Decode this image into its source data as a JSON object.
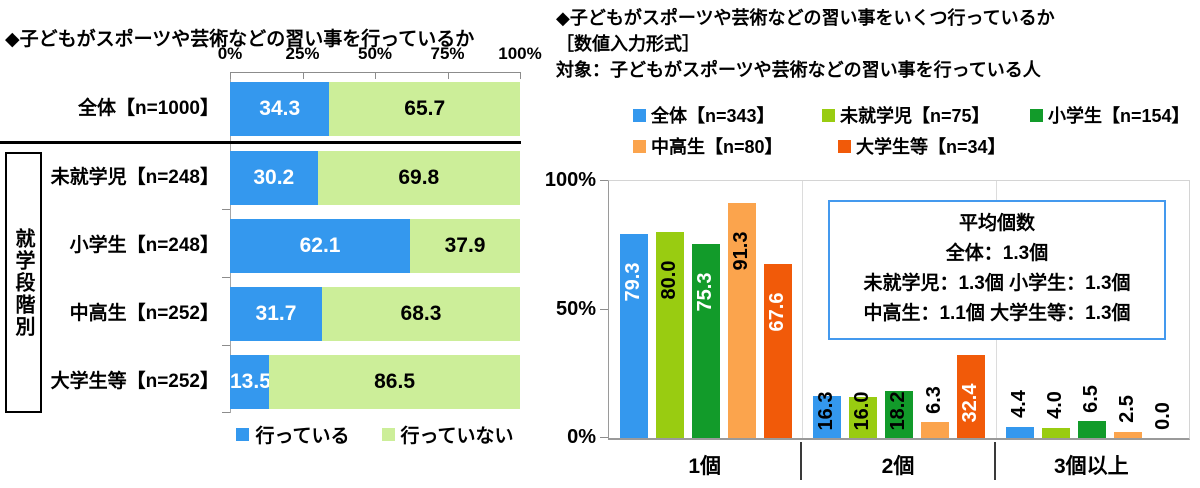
{
  "chart_data": [
    {
      "type": "bar",
      "orientation": "horizontal",
      "stacked": true,
      "title": "◆子どもがスポーツや芸術などの習い事を行っているか",
      "categories": [
        "全体【n=1000】",
        "未就学児【n=248】",
        "小学生【n=248】",
        "中高生【n=252】",
        "大学生等【n=252】"
      ],
      "row_group_label": "就学段階別",
      "row_group_span": [
        1,
        4
      ],
      "series": [
        {
          "name": "行っている",
          "color": "#3498EE",
          "label_color": "#FFFFFF",
          "values": [
            34.3,
            30.2,
            62.1,
            31.7,
            13.5
          ]
        },
        {
          "name": "行っていない",
          "color": "#CCEE99",
          "label_color": "#000000",
          "values": [
            65.7,
            69.8,
            37.9,
            68.3,
            86.5
          ]
        }
      ],
      "xlim": [
        0,
        100
      ],
      "x_ticks": [
        "0%",
        "25%",
        "50%",
        "75%",
        "100%"
      ],
      "legend_position": "bottom",
      "grid": "off"
    },
    {
      "type": "bar",
      "orientation": "vertical",
      "grouped": true,
      "title": "◆子どもがスポーツや芸術などの習い事をいくつ行っているか",
      "subtitle": "［数値入力形式］",
      "target_note": "対象：子どもがスポーツや芸術などの習い事を行っている人",
      "categories": [
        "1個",
        "2個",
        "3個以上"
      ],
      "series": [
        {
          "name": "全体【n=343】",
          "color": "#3498EE",
          "label_color_inside": "#FFFFFF",
          "values": [
            79.3,
            16.3,
            4.4
          ]
        },
        {
          "name": "未就学児【n=75】",
          "color": "#99CC11",
          "label_color_inside": "#000000",
          "values": [
            80.0,
            16.0,
            4.0
          ]
        },
        {
          "name": "小学生【n=154】",
          "color": "#129B2A",
          "label_color_inside": "#FFFFFF",
          "values": [
            75.3,
            18.2,
            6.5
          ]
        },
        {
          "name": "中高生【n=80】",
          "color": "#FBA44D",
          "label_color_inside": "#000000",
          "values": [
            91.3,
            6.3,
            2.5
          ]
        },
        {
          "name": "大学生等【n=34】",
          "color": "#F15A09",
          "label_color_inside": "#FFFFFF",
          "values": [
            67.6,
            32.4,
            0.0
          ]
        }
      ],
      "ylim": [
        0,
        100
      ],
      "y_ticks": [
        "0%",
        "50%",
        "100%"
      ],
      "legend_position": "top",
      "grid": "category-separators",
      "annotation": {
        "title": "平均個数",
        "lines": [
          "全体：1.3個",
          "未就学児：1.3個 小学生：1.3個",
          "中高生：1.1個 大学生等：1.3個"
        ],
        "border_color": "#4499EE"
      }
    }
  ]
}
